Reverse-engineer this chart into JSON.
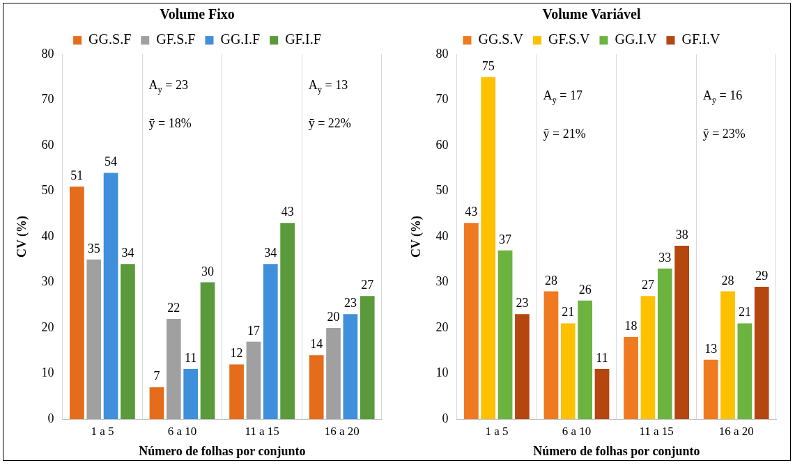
{
  "chart_data": [
    {
      "type": "bar",
      "title": "Volume Fixo",
      "xlabel": "Número de folhas por conjunto",
      "ylabel": "CV (%)",
      "categories": [
        "1 a 5",
        "6 a 10",
        "11 a 15",
        "16 a 20"
      ],
      "series": [
        {
          "name": "GG.S.F",
          "color": "#e46c1a",
          "values": [
            51,
            7,
            12,
            14
          ]
        },
        {
          "name": "GF.S.F",
          "color": "#a0a0a0",
          "values": [
            35,
            22,
            17,
            20
          ]
        },
        {
          "name": "GG.I.F",
          "color": "#3f8fdc",
          "values": [
            54,
            11,
            34,
            23
          ]
        },
        {
          "name": "GF.I.F",
          "color": "#5a9a3a",
          "values": [
            34,
            30,
            43,
            27
          ]
        }
      ],
      "ylim": [
        0,
        80
      ],
      "yticks": [
        0,
        10,
        20,
        30,
        40,
        50,
        60,
        70,
        80
      ],
      "grid": "x",
      "legend": "top",
      "data_labels": true,
      "annotations": [
        "A$_{ȳ}$ = 23",
        "ȳ = 18%",
        "A$_{ȳ}$ = 13",
        "ȳ = 22%"
      ]
    },
    {
      "type": "bar",
      "title": "Volume Variável",
      "xlabel": "Número de folhas por conjunto",
      "ylabel": "CV (%)",
      "categories": [
        "1 a 5",
        "6 a 10",
        "11 a 15",
        "16 a 20"
      ],
      "series": [
        {
          "name": "GG.S.V",
          "color": "#f07a20",
          "values": [
            43,
            28,
            18,
            13
          ]
        },
        {
          "name": "GF.S.V",
          "color": "#ffc000",
          "values": [
            75,
            21,
            27,
            28
          ]
        },
        {
          "name": "GG.I.V",
          "color": "#6cb33f",
          "values": [
            37,
            26,
            33,
            21
          ]
        },
        {
          "name": "GF.I.V",
          "color": "#b5460f",
          "values": [
            23,
            11,
            38,
            29
          ]
        }
      ],
      "ylim": [
        0,
        80
      ],
      "yticks": [
        0,
        10,
        20,
        30,
        40,
        50,
        60,
        70,
        80
      ],
      "grid": "x",
      "legend": "top",
      "data_labels": true,
      "annotations": [
        "A$_{ȳ}$ = 17",
        "ȳ = 21%",
        "A$_{ȳ}$ = 16",
        "ȳ = 23%"
      ]
    }
  ]
}
